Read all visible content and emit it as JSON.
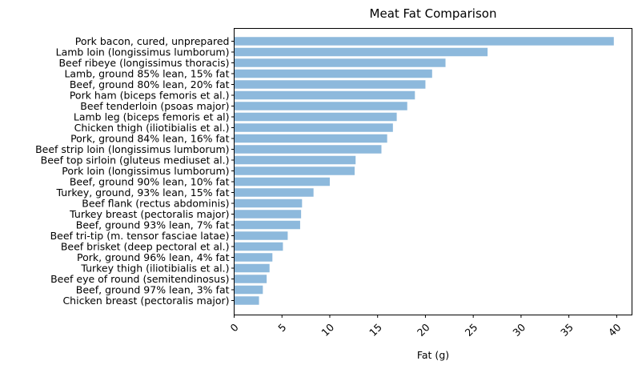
{
  "chart_data": {
    "type": "bar",
    "orientation": "horizontal",
    "title": "Meat Fat Comparison",
    "xlabel": "Fat (g)",
    "ylabel": "",
    "xlim": [
      0,
      41.6
    ],
    "xticks": [
      "0",
      "5",
      "10",
      "15",
      "20",
      "25",
      "30",
      "35",
      "40"
    ],
    "xtick_values": [
      0,
      5,
      10,
      15,
      20,
      25,
      30,
      35,
      40
    ],
    "xtick_rotation": 45,
    "grid": false,
    "bar_color": "#8db9dc",
    "categories": [
      "Pork bacon, cured, unprepared",
      "Lamb loin (longissimus lumborum)",
      "Beef ribeye (longissimus thoracis)",
      "Lamb, ground 85% lean, 15% fat",
      "Beef, ground 80% lean, 20% fat",
      "Pork ham (biceps femoris et al.)",
      "Beef tenderloin (psoas major)",
      "Lamb leg (biceps femoris et al)",
      "Chicken thigh (iliotibialis et al.)",
      "Pork, ground 84% lean, 16% fat",
      "Beef strip loin (longissimus lumborum)",
      "Beef top sirloin (gluteus mediuset al.)",
      "Pork loin (longissimus lumborum)",
      "Beef, ground 90% lean, 10% fat",
      "Turkey, ground, 93% lean, 15% fat",
      "Beef flank (rectus abdominis)",
      "Turkey breast (pectoralis major)",
      "Beef, ground 93% lean, 7% fat",
      "Beef tri-tip (m. tensor fasciae latae)",
      "Beef brisket (deep pectoral et al.)",
      "Pork, ground 96% lean, 4% fat",
      "Turkey thigh (iliotibialis et al.)",
      "Beef eye of round (semitendinosus)",
      "Beef, ground 97% lean, 3% fat",
      "Chicken breast (pectoralis major)"
    ],
    "values": [
      39.7,
      26.5,
      22.1,
      20.7,
      20.0,
      18.9,
      18.1,
      17.0,
      16.6,
      16.0,
      15.4,
      12.7,
      12.6,
      10.0,
      8.3,
      7.1,
      7.0,
      6.9,
      5.6,
      5.1,
      4.0,
      3.7,
      3.4,
      3.0,
      2.6
    ]
  }
}
